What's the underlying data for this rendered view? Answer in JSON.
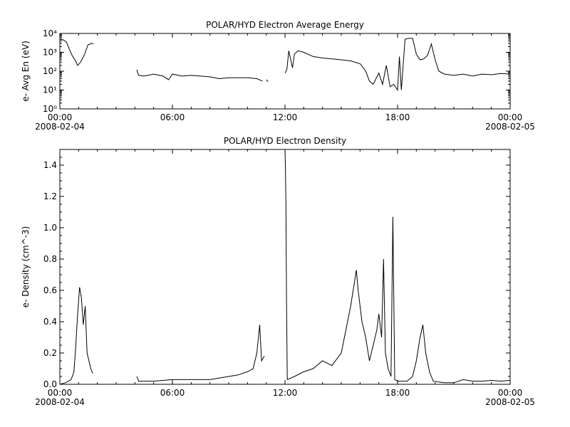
{
  "chart_data": [
    {
      "type": "line",
      "title": "POLAR/HYD  Electron Average Energy",
      "ylabel": "e- Avg En (eV)",
      "yscale": "log",
      "ylim": [
        1,
        10000
      ],
      "y_ticks": [
        "10⁰",
        "10¹",
        "10²",
        "10³",
        "10⁴"
      ],
      "x_ticks": [
        {
          "hour": 0,
          "label": "00:00",
          "sublabel": "2008-02-04"
        },
        {
          "hour": 6,
          "label": "06:00",
          "sublabel": ""
        },
        {
          "hour": 12,
          "label": "12:00",
          "sublabel": ""
        },
        {
          "hour": 18,
          "label": "18:00",
          "sublabel": ""
        },
        {
          "hour": 24,
          "label": "00:00",
          "sublabel": "2008-02-05"
        }
      ],
      "xlim": [
        0,
        24
      ],
      "series": [
        {
          "values": [
            [
              0.0,
              5000
            ],
            [
              0.2,
              4500
            ],
            [
              0.35,
              3500
            ],
            [
              0.5,
              1500
            ],
            [
              0.65,
              700
            ],
            [
              0.8,
              400
            ],
            [
              0.95,
              200
            ],
            [
              1.1,
              300
            ],
            [
              1.3,
              700
            ],
            [
              1.5,
              2500
            ],
            [
              1.7,
              3000
            ],
            [
              1.8,
              2800
            ]
          ]
        },
        {
          "values": [
            [
              4.1,
              120
            ],
            [
              4.2,
              60
            ],
            [
              4.5,
              55
            ],
            [
              5.0,
              70
            ],
            [
              5.5,
              55
            ],
            [
              5.8,
              35
            ],
            [
              6.0,
              70
            ],
            [
              6.5,
              55
            ],
            [
              7.0,
              60
            ],
            [
              7.5,
              55
            ],
            [
              8.0,
              50
            ],
            [
              8.5,
              40
            ],
            [
              9.0,
              45
            ],
            [
              9.5,
              45
            ],
            [
              10.0,
              45
            ],
            [
              10.5,
              40
            ],
            [
              10.8,
              30
            ]
          ]
        },
        {
          "values": [
            [
              11.0,
              35
            ],
            [
              11.1,
              28
            ]
          ]
        },
        {
          "values": [
            [
              12.0,
              80
            ],
            [
              12.1,
              120
            ],
            [
              12.2,
              1200
            ],
            [
              12.4,
              150
            ],
            [
              12.5,
              800
            ],
            [
              12.7,
              1200
            ],
            [
              13.0,
              1000
            ],
            [
              13.5,
              600
            ],
            [
              14.0,
              500
            ],
            [
              14.5,
              450
            ],
            [
              15.0,
              400
            ],
            [
              15.5,
              350
            ],
            [
              16.0,
              250
            ],
            [
              16.3,
              100
            ],
            [
              16.5,
              30
            ],
            [
              16.7,
              20
            ],
            [
              17.0,
              80
            ],
            [
              17.2,
              20
            ],
            [
              17.4,
              200
            ],
            [
              17.6,
              15
            ],
            [
              17.8,
              20
            ],
            [
              18.0,
              10
            ],
            [
              18.1,
              600
            ],
            [
              18.2,
              10
            ],
            [
              18.4,
              5000
            ],
            [
              18.6,
              5500
            ],
            [
              18.8,
              5500
            ],
            [
              19.0,
              800
            ],
            [
              19.2,
              400
            ],
            [
              19.4,
              450
            ],
            [
              19.6,
              700
            ],
            [
              19.8,
              2800
            ],
            [
              20.0,
              400
            ],
            [
              20.2,
              100
            ],
            [
              20.5,
              70
            ],
            [
              21.0,
              60
            ],
            [
              21.5,
              70
            ],
            [
              22.0,
              55
            ],
            [
              22.5,
              70
            ],
            [
              23.0,
              65
            ],
            [
              23.5,
              75
            ],
            [
              24.0,
              70
            ]
          ]
        }
      ]
    },
    {
      "type": "line",
      "title": "POLAR/HYD  Electron Density",
      "ylabel": "e- Density (cm^-3)",
      "ylim": [
        0,
        1.5
      ],
      "y_ticks": [
        "0.0",
        "0.2",
        "0.4",
        "0.6",
        "0.8",
        "1.0",
        "1.2",
        "1.4"
      ],
      "x_ticks": [
        {
          "hour": 0,
          "label": "00:00",
          "sublabel": "2008-02-04"
        },
        {
          "hour": 6,
          "label": "06:00",
          "sublabel": ""
        },
        {
          "hour": 12,
          "label": "12:00",
          "sublabel": ""
        },
        {
          "hour": 18,
          "label": "18:00",
          "sublabel": ""
        },
        {
          "hour": 24,
          "label": "00:00",
          "sublabel": "2008-02-05"
        }
      ],
      "xlim": [
        0,
        24
      ],
      "series": [
        {
          "values": [
            [
              0.0,
              0.0
            ],
            [
              0.3,
              0.01
            ],
            [
              0.6,
              0.03
            ],
            [
              0.75,
              0.08
            ],
            [
              0.85,
              0.25
            ],
            [
              0.95,
              0.45
            ],
            [
              1.05,
              0.62
            ],
            [
              1.15,
              0.55
            ],
            [
              1.25,
              0.38
            ],
            [
              1.35,
              0.5
            ],
            [
              1.45,
              0.2
            ],
            [
              1.55,
              0.15
            ],
            [
              1.65,
              0.1
            ],
            [
              1.75,
              0.07
            ]
          ]
        },
        {
          "values": [
            [
              4.1,
              0.05
            ],
            [
              4.2,
              0.02
            ],
            [
              5.0,
              0.02
            ],
            [
              6.0,
              0.03
            ],
            [
              7.0,
              0.03
            ],
            [
              8.0,
              0.03
            ],
            [
              9.0,
              0.05
            ],
            [
              9.5,
              0.06
            ],
            [
              10.0,
              0.08
            ],
            [
              10.3,
              0.1
            ],
            [
              10.5,
              0.2
            ],
            [
              10.65,
              0.38
            ],
            [
              10.75,
              0.15
            ],
            [
              10.9,
              0.18
            ]
          ]
        },
        {
          "values": [
            [
              12.0,
              1.5
            ],
            [
              12.02,
              1.4
            ],
            [
              12.05,
              1.15
            ],
            [
              12.08,
              0.55
            ],
            [
              12.12,
              0.03
            ],
            [
              12.5,
              0.05
            ],
            [
              13.0,
              0.08
            ],
            [
              13.5,
              0.1
            ],
            [
              14.0,
              0.15
            ],
            [
              14.5,
              0.12
            ],
            [
              15.0,
              0.2
            ],
            [
              15.5,
              0.5
            ],
            [
              15.7,
              0.65
            ],
            [
              15.8,
              0.73
            ],
            [
              15.9,
              0.6
            ],
            [
              16.1,
              0.4
            ],
            [
              16.3,
              0.3
            ],
            [
              16.5,
              0.15
            ],
            [
              16.7,
              0.25
            ],
            [
              16.9,
              0.35
            ],
            [
              17.0,
              0.45
            ],
            [
              17.15,
              0.3
            ],
            [
              17.25,
              0.8
            ],
            [
              17.35,
              0.2
            ],
            [
              17.5,
              0.1
            ],
            [
              17.65,
              0.05
            ],
            [
              17.75,
              1.07
            ],
            [
              17.85,
              0.03
            ],
            [
              18.0,
              0.02
            ],
            [
              18.5,
              0.02
            ],
            [
              18.8,
              0.05
            ],
            [
              19.0,
              0.15
            ],
            [
              19.2,
              0.3
            ],
            [
              19.35,
              0.38
            ],
            [
              19.5,
              0.2
            ],
            [
              19.7,
              0.08
            ],
            [
              19.9,
              0.02
            ],
            [
              20.5,
              0.01
            ],
            [
              21.0,
              0.01
            ],
            [
              21.5,
              0.03
            ],
            [
              22.0,
              0.02
            ],
            [
              22.5,
              0.02
            ],
            [
              23.0,
              0.025
            ],
            [
              23.5,
              0.02
            ],
            [
              24.0,
              0.025
            ]
          ]
        }
      ]
    }
  ]
}
